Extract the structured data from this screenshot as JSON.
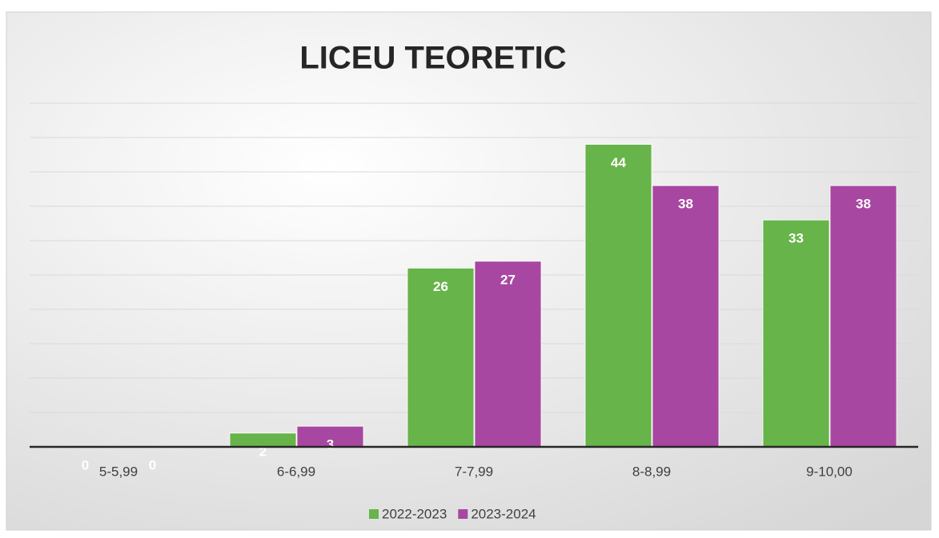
{
  "chart_data": {
    "type": "bar",
    "title": "LICEU TEORETIC",
    "categories": [
      "5-5,99",
      "6-6,99",
      "7-7,99",
      "8-8,99",
      "9-10,00"
    ],
    "series": [
      {
        "name": "2022-2023",
        "color": "#67b44a",
        "values": [
          0,
          2,
          26,
          44,
          33
        ]
      },
      {
        "name": "2023-2024",
        "color": "#a847a1",
        "values": [
          0,
          3,
          27,
          38,
          38
        ]
      }
    ],
    "ylim": [
      0,
      50
    ],
    "yticks": [
      0,
      5,
      10,
      15,
      20,
      25,
      30,
      35,
      40,
      45,
      50
    ],
    "grid": true,
    "legend": "bottom"
  }
}
